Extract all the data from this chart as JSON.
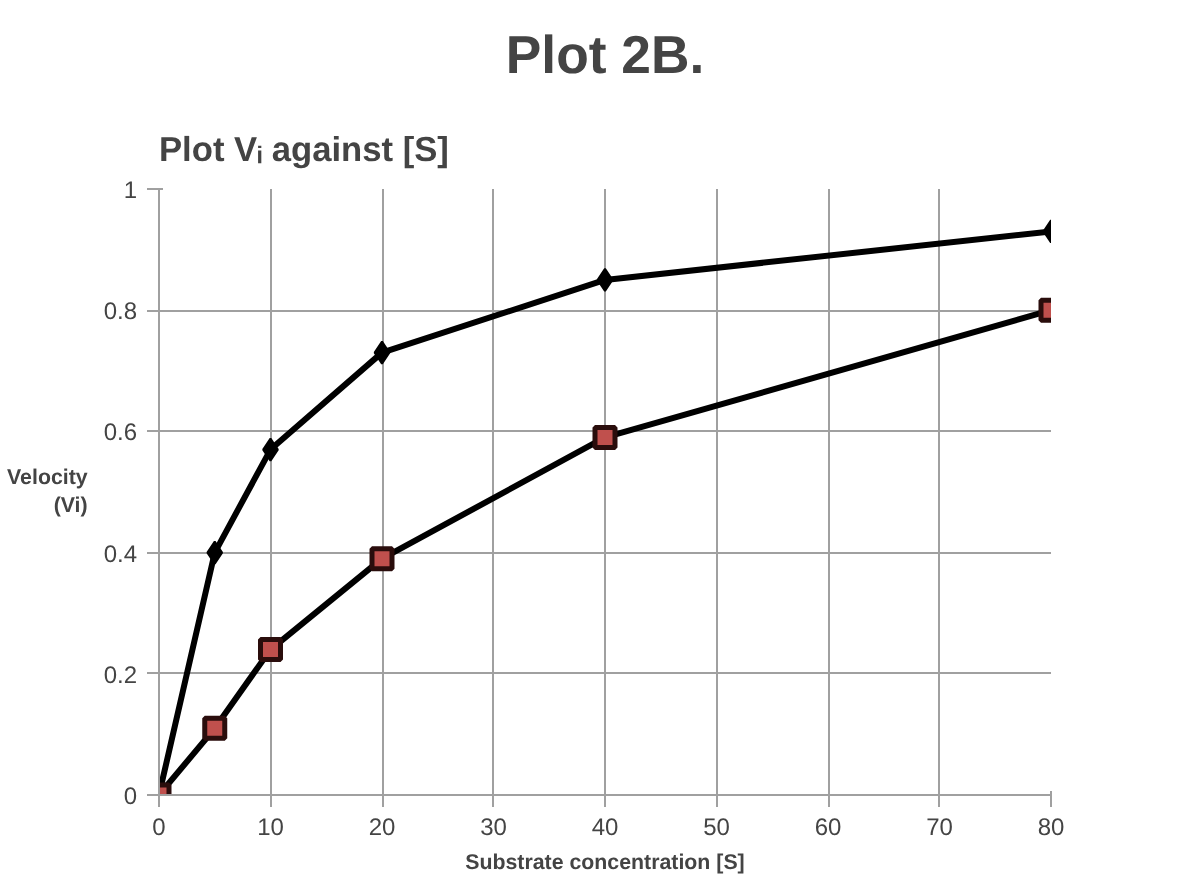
{
  "chart_data": {
    "type": "line",
    "title": "Plot 2B.",
    "subtitle": "Plot Vᵢ against [S]",
    "xlabel": "Substrate concentration [S]",
    "ylabel": "Velocity\n(Vi)",
    "x": [
      0,
      5,
      10,
      20,
      40,
      80
    ],
    "series": [
      {
        "color": "#000000",
        "marker": "diamond",
        "values": [
          0,
          0.4,
          0.57,
          0.73,
          0.85,
          0.93
        ]
      },
      {
        "color": "#c0504d",
        "marker": "square",
        "values": [
          0,
          0.11,
          0.24,
          0.39,
          0.59,
          0.8
        ]
      }
    ],
    "xlim": [
      0,
      80
    ],
    "xticks": [
      0,
      10,
      20,
      30,
      40,
      50,
      60,
      70,
      80
    ],
    "ylim": [
      0,
      1
    ],
    "yticks": [
      0,
      0.2,
      0.4,
      0.6,
      0.8,
      1
    ],
    "grid": true,
    "line_style": "solid"
  }
}
